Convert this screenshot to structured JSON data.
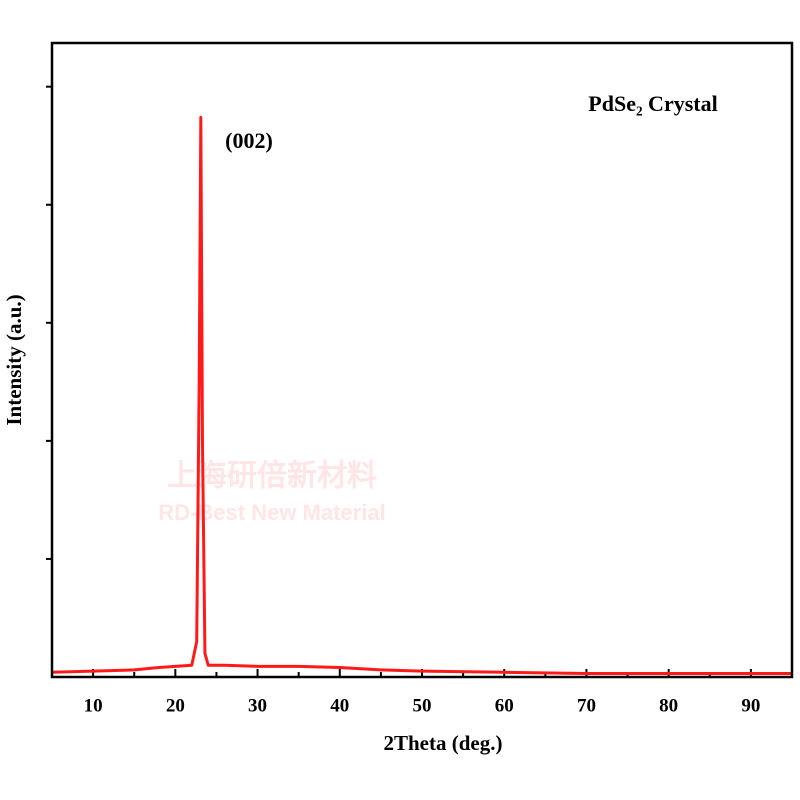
{
  "chart_data": {
    "type": "line",
    "title": "PdSe₂ Crystal",
    "annotation": "(002)",
    "watermark": [
      "上海研倍新材料",
      "RD-Best New Material"
    ],
    "xlabel": "2Theta (deg.)",
    "ylabel": "Intensity (a.u.)",
    "x": [
      5,
      10,
      15,
      18,
      20,
      22,
      22.6,
      22.9,
      23.1,
      23.3,
      23.6,
      24,
      26,
      30,
      35,
      40,
      45,
      50,
      60,
      70,
      80,
      90,
      95
    ],
    "series": [
      {
        "color": "#ff1a1a",
        "values": [
          0.04,
          0.05,
          0.06,
          0.08,
          0.09,
          0.1,
          0.3,
          2.5,
          4.74,
          2.0,
          0.2,
          0.1,
          0.1,
          0.09,
          0.09,
          0.08,
          0.06,
          0.05,
          0.04,
          0.03,
          0.03,
          0.03,
          0.03
        ]
      }
    ],
    "xlim": [
      5,
      95
    ],
    "xticks": [
      10,
      20,
      30,
      40,
      50,
      60,
      70,
      80,
      90
    ],
    "xminorticks": [
      15,
      25,
      35,
      45,
      55,
      65,
      75,
      85
    ],
    "ylim": [
      0,
      5.37
    ],
    "yticks": [
      1,
      2,
      3,
      4,
      5
    ]
  }
}
